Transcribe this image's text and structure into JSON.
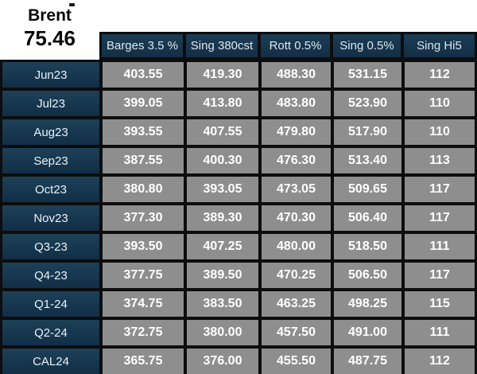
{
  "commodity": {
    "name": "Brent",
    "price": "75.46"
  },
  "table": {
    "columns": [
      "Barges 3.5 %",
      "Sing 380cst",
      "Rott 0.5%",
      "Sing 0.5%",
      "Sing Hi5"
    ],
    "rows": [
      {
        "label": "Jun23",
        "values": [
          "403.55",
          "419.30",
          "488.30",
          "531.15",
          "112"
        ]
      },
      {
        "label": "Jul23",
        "values": [
          "399.05",
          "413.80",
          "483.80",
          "523.90",
          "110"
        ]
      },
      {
        "label": "Aug23",
        "values": [
          "393.55",
          "407.55",
          "479.80",
          "517.90",
          "110"
        ]
      },
      {
        "label": "Sep23",
        "values": [
          "387.55",
          "400.30",
          "476.30",
          "513.40",
          "113"
        ]
      },
      {
        "label": "Oct23",
        "values": [
          "380.80",
          "393.05",
          "473.05",
          "509.65",
          "117"
        ]
      },
      {
        "label": "Nov23",
        "values": [
          "377.30",
          "389.30",
          "470.30",
          "506.40",
          "117"
        ]
      },
      {
        "label": "Q3-23",
        "values": [
          "393.50",
          "407.25",
          "480.00",
          "518.50",
          "111"
        ]
      },
      {
        "label": "Q4-23",
        "values": [
          "377.75",
          "389.50",
          "470.25",
          "506.50",
          "117"
        ]
      },
      {
        "label": "Q1-24",
        "values": [
          "374.75",
          "383.50",
          "463.25",
          "498.25",
          "115"
        ]
      },
      {
        "label": "Q2-24",
        "values": [
          "372.75",
          "380.00",
          "457.50",
          "491.00",
          "111"
        ]
      },
      {
        "label": "CAL24",
        "values": [
          "365.75",
          "376.00",
          "455.50",
          "487.75",
          "112"
        ]
      }
    ]
  },
  "colors": {
    "navy_header": "#16374f",
    "cell_gray": "#8e8e8e",
    "grid_black": "#0d0d0d",
    "text_white": "#ffffff"
  }
}
